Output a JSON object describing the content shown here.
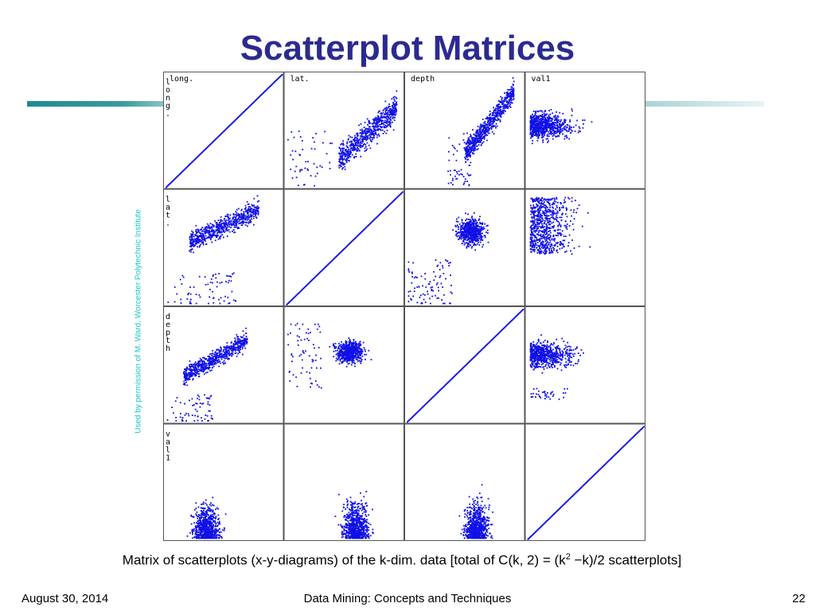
{
  "slide": {
    "title": "Scatterplot Matrices",
    "side_credit": "Used by permission of M. Ward, Worcester Polytechnic Institute",
    "caption": {
      "before": "Matrix of scatterplots (x-y-diagrams) of the k-dim. data [total of C(k, 2) = (k",
      "sup": "2",
      "after": " −k)/2 scatterplots]"
    },
    "footer": {
      "date": "August 30, 2014",
      "course": "Data Mining: Concepts and Techniques",
      "page": "22"
    },
    "colors": {
      "title": "#2b2b8f",
      "points": "#1010e6",
      "credit": "#19c6c0",
      "accent_bar": "#1f8a93"
    }
  },
  "chart_data": {
    "type": "scatter",
    "layout": "scatterplot-matrix",
    "variables": [
      "long.",
      "lat.",
      "depth",
      "val1"
    ],
    "panel_labels": [
      "long.",
      "lat.",
      "depth",
      "val1"
    ],
    "diagonal": "identity line",
    "grid": false,
    "legend": "none"
  }
}
